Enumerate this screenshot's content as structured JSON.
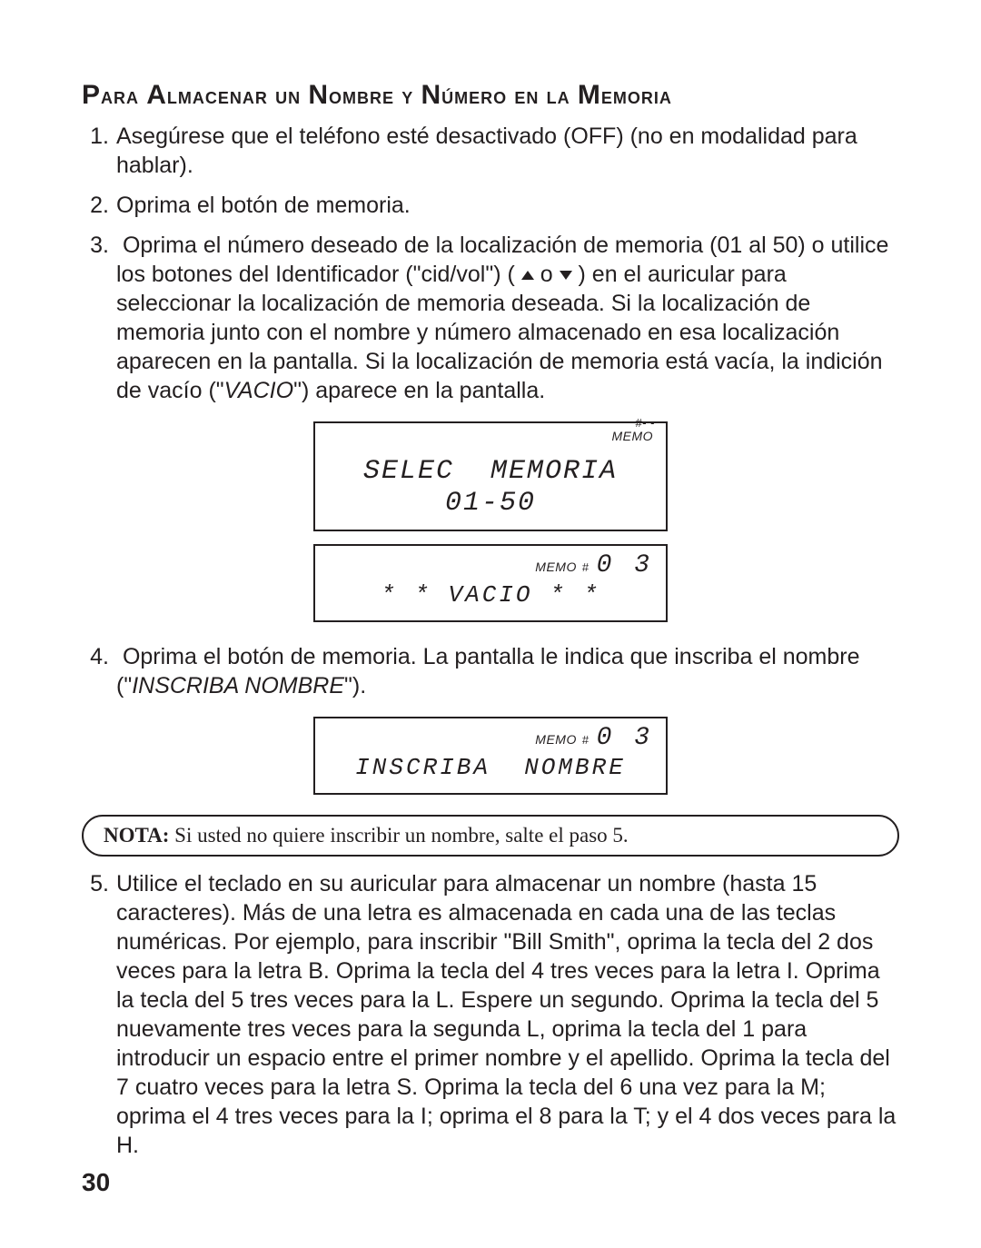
{
  "heading_html": "<span class='cap'>P</span>ara <span class='cap'>A</span>lmacenar un <span class='cap'>N</span>ombre y <span class='cap'>N</span>úmero en la <span class='cap'>M</span>emoria",
  "steps": {
    "s1": "Asegúrese que el teléfono esté desactivado (OFF) (no en modalidad para hablar).",
    "s2": "Oprima el botón de memoria.",
    "s3_a": "Oprima el número deseado de la localización de memoria (01 al 50) o utilice los botones del Identificador (\"cid/vol\") (",
    "s3_b": " o ",
    "s3_c": ") en el auricular para seleccionar la localización de memoria deseada. Si la localización de memoria junto con el nombre y número almacenado en esa localización aparecen en la pantalla. Si la localización de memoria está vacía, la indición de vacío (\"",
    "s3_vacio": "VACIO",
    "s3_d": "\") aparece en la pantalla.",
    "s4_a": "Oprima el botón de memoria. La pantalla le indica que inscriba el nombre (\"",
    "s4_ital": "INSCRIBA NOMBRE",
    "s4_b": "\").",
    "s5": "Utilice el teclado en su auricular para almacenar un nombre (hasta 15 caracteres). Más de una letra es almacenada en cada una de las teclas numéricas. Por ejemplo, para inscribir \"Bill Smith\", oprima la tecla del 2 dos veces para la letra B. Oprima la tecla del 4 tres veces para la letra I. Oprima la tecla del 5 tres veces para la L. Espere un segundo. Oprima la tecla del 5 nuevamente tres veces para la segunda L, oprima la tecla del 1 para introducir un espacio entre el primer nombre y el apellido. Oprima la tecla del 7 cuatro veces para la letra S. Oprima la tecla del 6 una vez para la M; oprima el 4 tres veces para la I; oprima el 8 para la T; y el 4 dos veces para la H."
  },
  "lcd1": {
    "top_memo": "MEMO",
    "top_num": "#-  -",
    "line1": "SELEC  MEMORIA",
    "line2": "01-50"
  },
  "lcd2": {
    "top_memo": "MEMO",
    "top_num": "0 3",
    "body": "* * VACIO * *"
  },
  "lcd3": {
    "top_memo": "MEMO",
    "top_num": "0 3",
    "body": "INSCRIBA  NOMBRE"
  },
  "nota": {
    "label": "NOTA:",
    "text": " Si usted no quiere inscribir un nombre, salte el paso 5."
  },
  "page_number": "30"
}
